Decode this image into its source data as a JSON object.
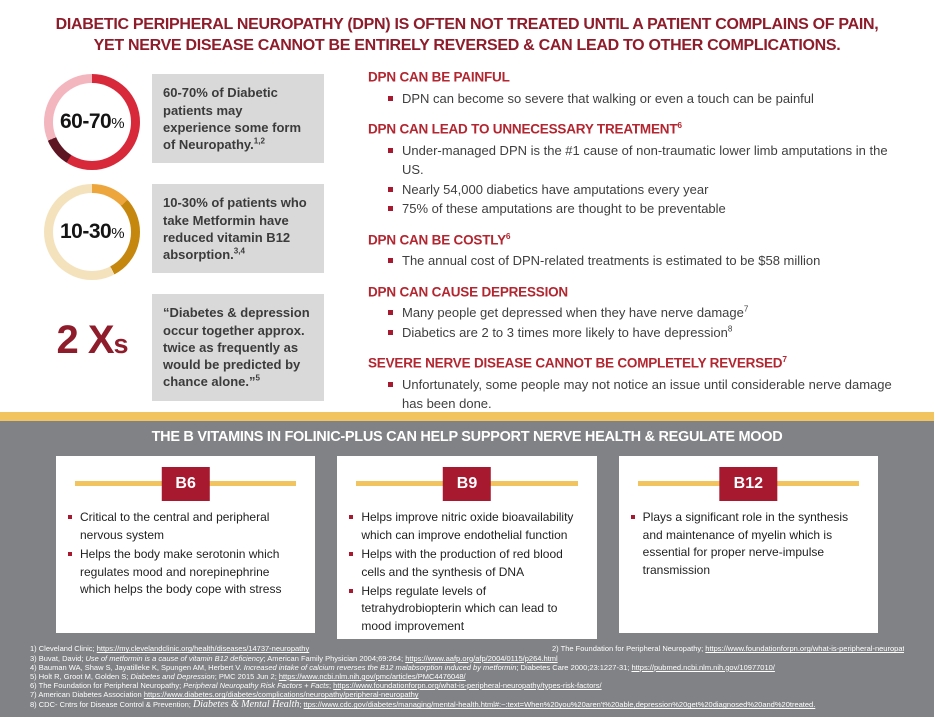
{
  "title": {
    "line1": "DIABETIC PERIPHERAL NEUROPATHY (DPN) IS OFTEN NOT TREATED UNTIL A PATIENT COMPLAINS OF PAIN,",
    "line2": "YET NERVE DISEASE CANNOT BE ENTIRELY REVERSED & CAN LEAD TO OTHER COMPLICATIONS."
  },
  "stats": [
    {
      "value": "60-70",
      "unit": "%",
      "text": "60-70% of Diabetic patients may experience some form of Neuropathy.",
      "sup": "1,2",
      "ring_style": "background: conic-gradient(#D7293A 0deg 212deg, #5E1523 212deg 247deg, #F3B6BE 247deg 360deg)"
    },
    {
      "value": "10-30",
      "unit": "%",
      "text": "10-30% of patients who take Metformin have reduced vitamin B12 absorption.",
      "sup": "3,4",
      "ring_style": "background: conic-gradient(#EDA63C 0deg 48deg, #C6870F 48deg 152deg, #F4E2BD 152deg 360deg)"
    },
    {
      "value": "2 X",
      "unit": "s",
      "text": "“Diabetes & depression occur together approx. twice as frequently as would be predicted by chance alone.”",
      "sup": "5"
    }
  ],
  "sections": [
    {
      "heading": "DPN CAN BE PAINFUL",
      "heading_sup": "",
      "bullets": [
        {
          "text": "DPN can become so severe that walking or even a touch can be painful",
          "sup": ""
        }
      ]
    },
    {
      "heading": "DPN CAN LEAD TO UNNECESSARY TREATMENT",
      "heading_sup": "6",
      "bullets": [
        {
          "text": "Under-managed DPN is the #1 cause of non-traumatic lower limb amputations in the US.",
          "sup": ""
        },
        {
          "text": "Nearly 54,000 diabetics have amputations every year",
          "sup": ""
        },
        {
          "text": "75% of these amputations are thought to be preventable",
          "sup": ""
        }
      ]
    },
    {
      "heading": "DPN CAN BE COSTLY",
      "heading_sup": "6",
      "bullets": [
        {
          "text": "The annual cost of DPN-related treatments is estimated to be $58 million",
          "sup": ""
        }
      ]
    },
    {
      "heading": "DPN CAN CAUSE DEPRESSION",
      "heading_sup": "",
      "bullets": [
        {
          "text": "Many people get depressed when they have nerve damage",
          "sup": "7"
        },
        {
          "text": "Diabetics are 2 to 3 times more likely to have depression",
          "sup": "8"
        }
      ]
    },
    {
      "heading": "SEVERE NERVE DISEASE CANNOT BE COMPLETELY REVERSED",
      "heading_sup": "7",
      "bullets": [
        {
          "text": "Unfortunately, some people may not notice an issue until considerable nerve damage has been done.",
          "sup": ""
        }
      ]
    }
  ],
  "banner": {
    "title": "THE B VITAMINS IN FOLINIC-PLUS CAN HELP SUPPORT NERVE HEALTH & REGULATE MOOD"
  },
  "vitamins": [
    {
      "name": "B6",
      "bullets": [
        "Critical to the central and peripheral nervous system",
        "Helps the body make serotonin which regulates mood and norepinephrine which helps the body cope with stress"
      ]
    },
    {
      "name": "B9",
      "bullets": [
        "Helps improve nitric oxide bioavailability which can improve endothelial function",
        "Helps with the production of red blood cells and the synthesis of DNA",
        "Helps regulate levels of tetrahydrobiopterin which can lead to mood improvement"
      ]
    },
    {
      "name": "B12",
      "bullets": [
        "Plays a significant role in the synthesis and maintenance of myelin which is essential for proper nerve-impulse transmission"
      ]
    }
  ],
  "references": [
    {
      "num": "1)",
      "pre": " Cleveland Clinic; ",
      "em": "",
      "mid": "",
      "link": "https://my.clevelandclinic.org/health/diseases/14737-neuropathy"
    },
    {
      "num": "2)",
      "pre": " The Foundation for Peripheral Neuropathy; ",
      "em": "",
      "mid": "",
      "link": "https://www.foundationforpn.org/what-is-peripheral-neuropathy/types-risk-factors/"
    },
    {
      "num": "3)",
      "pre": " Buvat, David; ",
      "em": "Use of metformin is a cause of vitamin B12 deficiency",
      "mid": "; American Family Physician 2004;69:264; ",
      "link": "https://www.aafp.org/afp/2004/0115/p264.html"
    },
    {
      "num": "4)",
      "pre": " Bauman WA, Shaw S, Jayatilleke K, Spungen AM, Herbert V. ",
      "em": "Increased intake of calcium reverses the B12 malabsorption induced by metformin",
      "mid": "; Diabetes Care 2000;23:1227-31; ",
      "link": "https://pubmed.ncbi.nlm.nih.gov/10977010/"
    },
    {
      "num": "5)",
      "pre": " Holt R, Groot M, Golden S; ",
      "em": "Diabetes and Depression",
      "mid": "; PMC 2015 Jun 2; ",
      "link": "https://www.ncbi.nlm.nih.gov/pmc/articles/PMC4476048/"
    },
    {
      "num": "6)",
      "pre": " The Foundation for Peripheral Neuropathy; ",
      "em": "Peripheral Neuropathy Risk Factors + Facts",
      "mid": "; ",
      "link": "https://www.foundationforpn.org/what-is-peripheral-neuropathy/types-risk-factors/"
    },
    {
      "num": "7)",
      "pre": " American Diabetes Association ",
      "em": "",
      "mid": "",
      "link": "https://www.diabetes.org/diabetes/complications/neuropathy/peripheral-neuropathy"
    },
    {
      "num": "8)",
      "pre": " CDC- Cntrs for Disease Control & Prevention; ",
      "em": "Diabetes & Mental Health",
      "mid": "; ",
      "link": "ttps://www.cdc.gov/diabetes/managing/mental-health.html#:~:text=When%20you%20aren't%20able,depression%20get%20diagnosed%20and%20treated."
    }
  ],
  "colors": {
    "title_maroon": "#8E1C2B",
    "heading_red": "#B32630",
    "badge_red": "#A6192E",
    "gold": "#F2C45F",
    "gray_panel": "#808285",
    "stat_box_gray": "#D9D9D9",
    "donut_red": "#D7293A",
    "donut_dark_maroon": "#5E1523",
    "donut_pink": "#F3B6BE",
    "donut_amber": "#EDA63C",
    "donut_bronze": "#C6870F",
    "donut_cream": "#F4E2BD"
  }
}
